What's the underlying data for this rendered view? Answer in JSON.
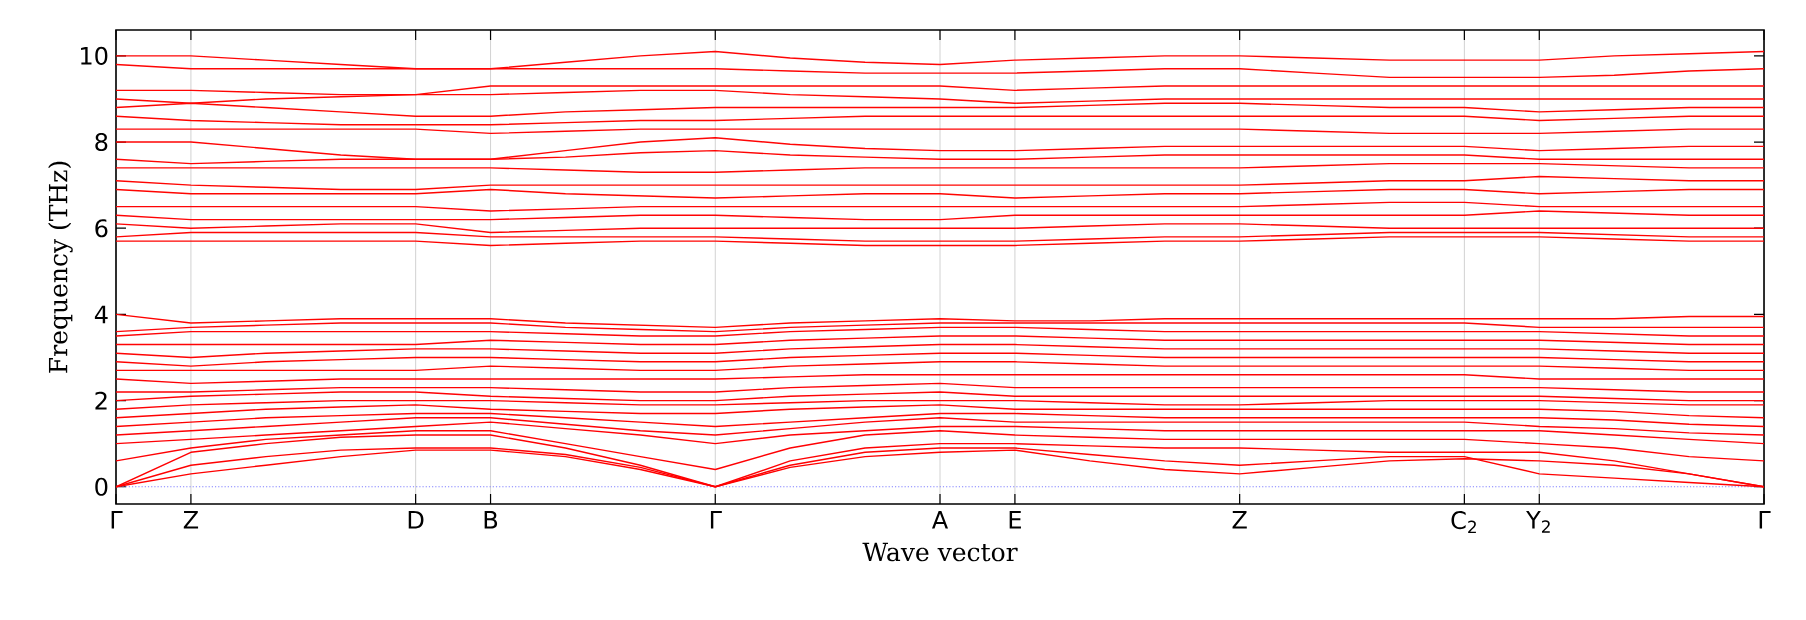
{
  "chart_data": {
    "type": "line",
    "xlabel": "Wave vector",
    "ylabel": "Frequency (THz)",
    "categories": [
      "Γ",
      "Z",
      null,
      null,
      "D",
      "B",
      null,
      null,
      "Γ",
      null,
      null,
      "A",
      "E",
      null,
      null,
      "Z",
      null,
      null,
      "C$_{2}$",
      "Y$_{2}$",
      null,
      null,
      "Γ"
    ],
    "ylim": [
      -0.4,
      10.6
    ],
    "yticks": [
      0,
      2,
      4,
      6,
      8,
      10
    ],
    "grid": "x",
    "line_style": "solid",
    "ref_lines": [
      {
        "axis": "y",
        "value": 0,
        "color": "#8080ff",
        "line_style": "dotted"
      }
    ],
    "series": [
      {
        "color": "#ff0000",
        "values": [
          0,
          0.3,
          0.5,
          0.7,
          0.85,
          0.85,
          0.7,
          0.4,
          0,
          0.45,
          0.7,
          0.8,
          0.85,
          0.6,
          0.4,
          0.3,
          0.45,
          0.6,
          0.65,
          0.6,
          0.5,
          0.3,
          0
        ]
      },
      {
        "color": "#ff0001",
        "values": [
          0,
          0.5,
          0.7,
          0.85,
          0.9,
          0.9,
          0.75,
          0.45,
          0,
          0.5,
          0.8,
          0.9,
          0.9,
          0.75,
          0.6,
          0.5,
          0.6,
          0.7,
          0.7,
          0.3,
          0.2,
          0.1,
          0
        ]
      },
      {
        "color": "#ff0002",
        "values": [
          0,
          0.8,
          1.0,
          1.15,
          1.2,
          1.2,
          0.9,
          0.5,
          0,
          0.6,
          0.9,
          1.0,
          1.0,
          0.95,
          0.9,
          0.9,
          0.85,
          0.8,
          0.8,
          0.8,
          0.6,
          0.3,
          0
        ]
      },
      {
        "color": "#ff0003",
        "values": [
          0.6,
          0.9,
          1.1,
          1.2,
          1.3,
          1.3,
          1.0,
          0.7,
          0.4,
          0.9,
          1.2,
          1.3,
          1.2,
          1.15,
          1.1,
          1.1,
          1.1,
          1.1,
          1.1,
          1.0,
          0.9,
          0.7,
          0.6
        ]
      },
      {
        "color": "#ff0004",
        "values": [
          1.0,
          1.1,
          1.2,
          1.3,
          1.4,
          1.5,
          1.35,
          1.2,
          1.0,
          1.2,
          1.3,
          1.4,
          1.4,
          1.35,
          1.3,
          1.3,
          1.3,
          1.3,
          1.3,
          1.3,
          1.2,
          1.1,
          1.0
        ]
      },
      {
        "color": "#ff0005",
        "values": [
          1.2,
          1.3,
          1.4,
          1.5,
          1.6,
          1.6,
          1.45,
          1.3,
          1.2,
          1.35,
          1.5,
          1.6,
          1.5,
          1.5,
          1.5,
          1.5,
          1.5,
          1.5,
          1.5,
          1.4,
          1.35,
          1.25,
          1.2
        ]
      },
      {
        "color": "#ff0100",
        "values": [
          1.4,
          1.5,
          1.6,
          1.65,
          1.7,
          1.7,
          1.6,
          1.5,
          1.4,
          1.5,
          1.6,
          1.7,
          1.7,
          1.65,
          1.6,
          1.6,
          1.6,
          1.6,
          1.6,
          1.6,
          1.55,
          1.45,
          1.4
        ]
      },
      {
        "color": "#ff0101",
        "values": [
          1.6,
          1.7,
          1.8,
          1.85,
          1.9,
          1.8,
          1.75,
          1.7,
          1.7,
          1.8,
          1.85,
          1.9,
          1.8,
          1.8,
          1.8,
          1.8,
          1.8,
          1.8,
          1.8,
          1.8,
          1.75,
          1.65,
          1.6
        ]
      },
      {
        "color": "#ff0102",
        "values": [
          1.8,
          1.9,
          1.95,
          2.0,
          2.0,
          2.0,
          1.95,
          1.9,
          1.9,
          1.95,
          2.0,
          2.0,
          2.0,
          1.95,
          1.9,
          1.9,
          1.95,
          2.0,
          2.0,
          2.0,
          1.95,
          1.9,
          1.9
        ]
      },
      {
        "color": "#ff0103",
        "values": [
          2.0,
          2.1,
          2.15,
          2.2,
          2.2,
          2.1,
          2.05,
          2.0,
          2.0,
          2.1,
          2.15,
          2.2,
          2.1,
          2.1,
          2.1,
          2.1,
          2.1,
          2.1,
          2.1,
          2.1,
          2.05,
          2.0,
          2.0
        ]
      },
      {
        "color": "#ff0104",
        "values": [
          2.2,
          2.2,
          2.25,
          2.3,
          2.3,
          2.3,
          2.25,
          2.2,
          2.2,
          2.3,
          2.35,
          2.4,
          2.3,
          2.3,
          2.3,
          2.3,
          2.3,
          2.3,
          2.3,
          2.3,
          2.25,
          2.2,
          2.2
        ]
      },
      {
        "color": "#ff0105",
        "values": [
          2.5,
          2.4,
          2.45,
          2.5,
          2.5,
          2.5,
          2.5,
          2.5,
          2.5,
          2.55,
          2.6,
          2.6,
          2.6,
          2.6,
          2.6,
          2.6,
          2.6,
          2.6,
          2.6,
          2.5,
          2.5,
          2.5,
          2.5
        ]
      },
      {
        "color": "#ff0200",
        "values": [
          2.7,
          2.7,
          2.7,
          2.7,
          2.7,
          2.8,
          2.75,
          2.7,
          2.7,
          2.8,
          2.85,
          2.9,
          2.9,
          2.85,
          2.8,
          2.8,
          2.8,
          2.8,
          2.8,
          2.8,
          2.75,
          2.7,
          2.7
        ]
      },
      {
        "color": "#ff0201",
        "values": [
          2.9,
          2.8,
          2.9,
          2.95,
          3.0,
          3.0,
          2.95,
          2.9,
          2.9,
          3.0,
          3.05,
          3.1,
          3.1,
          3.05,
          3.0,
          3.0,
          3.0,
          3.0,
          3.0,
          3.0,
          2.95,
          2.9,
          2.9
        ]
      },
      {
        "color": "#ff0202",
        "values": [
          3.1,
          3.0,
          3.1,
          3.15,
          3.2,
          3.2,
          3.15,
          3.1,
          3.1,
          3.2,
          3.25,
          3.3,
          3.3,
          3.25,
          3.2,
          3.2,
          3.2,
          3.2,
          3.2,
          3.2,
          3.15,
          3.1,
          3.1
        ]
      },
      {
        "color": "#ff0203",
        "values": [
          3.3,
          3.3,
          3.3,
          3.3,
          3.3,
          3.4,
          3.35,
          3.3,
          3.3,
          3.4,
          3.45,
          3.5,
          3.5,
          3.45,
          3.4,
          3.4,
          3.4,
          3.4,
          3.4,
          3.4,
          3.35,
          3.3,
          3.3
        ]
      },
      {
        "color": "#ff0204",
        "values": [
          3.5,
          3.6,
          3.6,
          3.6,
          3.6,
          3.6,
          3.55,
          3.5,
          3.5,
          3.6,
          3.65,
          3.7,
          3.7,
          3.65,
          3.6,
          3.6,
          3.6,
          3.6,
          3.6,
          3.6,
          3.55,
          3.5,
          3.5
        ]
      },
      {
        "color": "#ff0205",
        "values": [
          3.6,
          3.7,
          3.75,
          3.8,
          3.8,
          3.8,
          3.7,
          3.65,
          3.6,
          3.7,
          3.75,
          3.8,
          3.8,
          3.8,
          3.8,
          3.8,
          3.8,
          3.8,
          3.8,
          3.7,
          3.7,
          3.7,
          3.7
        ]
      },
      {
        "color": "#ff0300",
        "values": [
          4.0,
          3.8,
          3.85,
          3.9,
          3.9,
          3.9,
          3.8,
          3.75,
          3.7,
          3.8,
          3.85,
          3.9,
          3.85,
          3.85,
          3.9,
          3.9,
          3.9,
          3.9,
          3.9,
          3.9,
          3.9,
          3.95,
          3.95
        ]
      },
      {
        "color": "#ff0301",
        "values": [
          5.7,
          5.7,
          5.7,
          5.7,
          5.7,
          5.6,
          5.65,
          5.7,
          5.7,
          5.65,
          5.6,
          5.6,
          5.6,
          5.65,
          5.7,
          5.7,
          5.75,
          5.8,
          5.8,
          5.8,
          5.75,
          5.7,
          5.7
        ]
      },
      {
        "color": "#ff0302",
        "values": [
          5.8,
          5.9,
          5.9,
          5.9,
          5.9,
          5.8,
          5.8,
          5.8,
          5.8,
          5.75,
          5.7,
          5.7,
          5.7,
          5.75,
          5.8,
          5.8,
          5.85,
          5.9,
          5.9,
          5.9,
          5.85,
          5.8,
          5.8
        ]
      },
      {
        "color": "#ff0303",
        "values": [
          6.1,
          6.0,
          6.05,
          6.1,
          6.1,
          5.9,
          5.95,
          6.0,
          6.0,
          6.0,
          6.0,
          6.0,
          6.0,
          6.05,
          6.1,
          6.1,
          6.05,
          6.0,
          6.0,
          6.0,
          6.0,
          6.0,
          6.0
        ]
      },
      {
        "color": "#ff0304",
        "values": [
          6.3,
          6.2,
          6.2,
          6.2,
          6.2,
          6.2,
          6.25,
          6.3,
          6.3,
          6.25,
          6.2,
          6.2,
          6.3,
          6.3,
          6.3,
          6.3,
          6.3,
          6.3,
          6.3,
          6.4,
          6.35,
          6.3,
          6.3
        ]
      },
      {
        "color": "#ff0305",
        "values": [
          6.5,
          6.5,
          6.5,
          6.5,
          6.5,
          6.4,
          6.45,
          6.5,
          6.5,
          6.5,
          6.5,
          6.5,
          6.5,
          6.5,
          6.5,
          6.5,
          6.55,
          6.6,
          6.6,
          6.5,
          6.5,
          6.5,
          6.5
        ]
      },
      {
        "color": "#ff0400",
        "values": [
          6.9,
          6.8,
          6.8,
          6.8,
          6.8,
          6.9,
          6.8,
          6.75,
          6.7,
          6.75,
          6.8,
          6.8,
          6.7,
          6.75,
          6.8,
          6.8,
          6.85,
          6.9,
          6.9,
          6.8,
          6.85,
          6.9,
          6.9
        ]
      },
      {
        "color": "#ff0401",
        "values": [
          7.1,
          7.0,
          6.95,
          6.9,
          6.9,
          7.0,
          7.0,
          7.0,
          7.0,
          7.0,
          7.0,
          7.0,
          7.0,
          7.0,
          7.0,
          7.0,
          7.05,
          7.1,
          7.1,
          7.2,
          7.15,
          7.1,
          7.1
        ]
      },
      {
        "color": "#ff0402",
        "values": [
          7.4,
          7.4,
          7.4,
          7.4,
          7.4,
          7.4,
          7.35,
          7.3,
          7.3,
          7.35,
          7.4,
          7.4,
          7.4,
          7.4,
          7.4,
          7.4,
          7.45,
          7.5,
          7.5,
          7.5,
          7.45,
          7.4,
          7.4
        ]
      },
      {
        "color": "#ff0403",
        "values": [
          7.6,
          7.5,
          7.55,
          7.6,
          7.6,
          7.6,
          7.65,
          7.75,
          7.8,
          7.7,
          7.65,
          7.6,
          7.6,
          7.65,
          7.7,
          7.7,
          7.7,
          7.7,
          7.7,
          7.6,
          7.6,
          7.6,
          7.6
        ]
      },
      {
        "color": "#ff0404",
        "values": [
          8.0,
          8.0,
          7.85,
          7.7,
          7.6,
          7.6,
          7.8,
          8.0,
          8.1,
          7.95,
          7.85,
          7.8,
          7.8,
          7.85,
          7.9,
          7.9,
          7.9,
          7.9,
          7.9,
          7.8,
          7.85,
          7.9,
          7.9
        ]
      },
      {
        "color": "#ff0405",
        "values": [
          8.3,
          8.3,
          8.3,
          8.3,
          8.3,
          8.2,
          8.25,
          8.3,
          8.3,
          8.3,
          8.3,
          8.3,
          8.3,
          8.3,
          8.3,
          8.3,
          8.25,
          8.2,
          8.2,
          8.2,
          8.25,
          8.3,
          8.3
        ]
      },
      {
        "color": "#ff0500",
        "values": [
          8.6,
          8.5,
          8.45,
          8.4,
          8.4,
          8.4,
          8.45,
          8.5,
          8.5,
          8.55,
          8.6,
          8.6,
          8.6,
          8.6,
          8.6,
          8.6,
          8.6,
          8.6,
          8.6,
          8.5,
          8.55,
          8.6,
          8.6
        ]
      },
      {
        "color": "#ff0501",
        "values": [
          8.8,
          8.9,
          8.8,
          8.7,
          8.6,
          8.6,
          8.7,
          8.75,
          8.8,
          8.8,
          8.8,
          8.8,
          8.8,
          8.85,
          8.9,
          8.9,
          8.85,
          8.8,
          8.8,
          8.7,
          8.75,
          8.8,
          8.8
        ]
      },
      {
        "color": "#ff0502",
        "values": [
          9.0,
          8.9,
          9.0,
          9.05,
          9.1,
          9.1,
          9.15,
          9.2,
          9.2,
          9.1,
          9.05,
          9.0,
          8.9,
          8.95,
          9.0,
          9.0,
          9.0,
          9.0,
          9.0,
          9.0,
          9.0,
          9.0,
          9.0
        ]
      },
      {
        "color": "#ff0503",
        "values": [
          9.2,
          9.2,
          9.15,
          9.1,
          9.1,
          9.3,
          9.3,
          9.3,
          9.3,
          9.3,
          9.3,
          9.3,
          9.2,
          9.25,
          9.3,
          9.3,
          9.3,
          9.3,
          9.3,
          9.3,
          9.3,
          9.3,
          9.3
        ]
      },
      {
        "color": "#ff0504",
        "values": [
          9.8,
          9.7,
          9.7,
          9.7,
          9.7,
          9.7,
          9.7,
          9.7,
          9.7,
          9.65,
          9.6,
          9.6,
          9.6,
          9.65,
          9.7,
          9.7,
          9.6,
          9.5,
          9.5,
          9.5,
          9.55,
          9.65,
          9.7
        ]
      },
      {
        "color": "#ff0505",
        "values": [
          10.0,
          10.0,
          9.9,
          9.8,
          9.7,
          9.7,
          9.85,
          10.0,
          10.1,
          9.95,
          9.85,
          9.8,
          9.9,
          9.95,
          10.0,
          10.0,
          9.95,
          9.9,
          9.9,
          9.9,
          10.0,
          10.05,
          10.1
        ]
      }
    ]
  }
}
